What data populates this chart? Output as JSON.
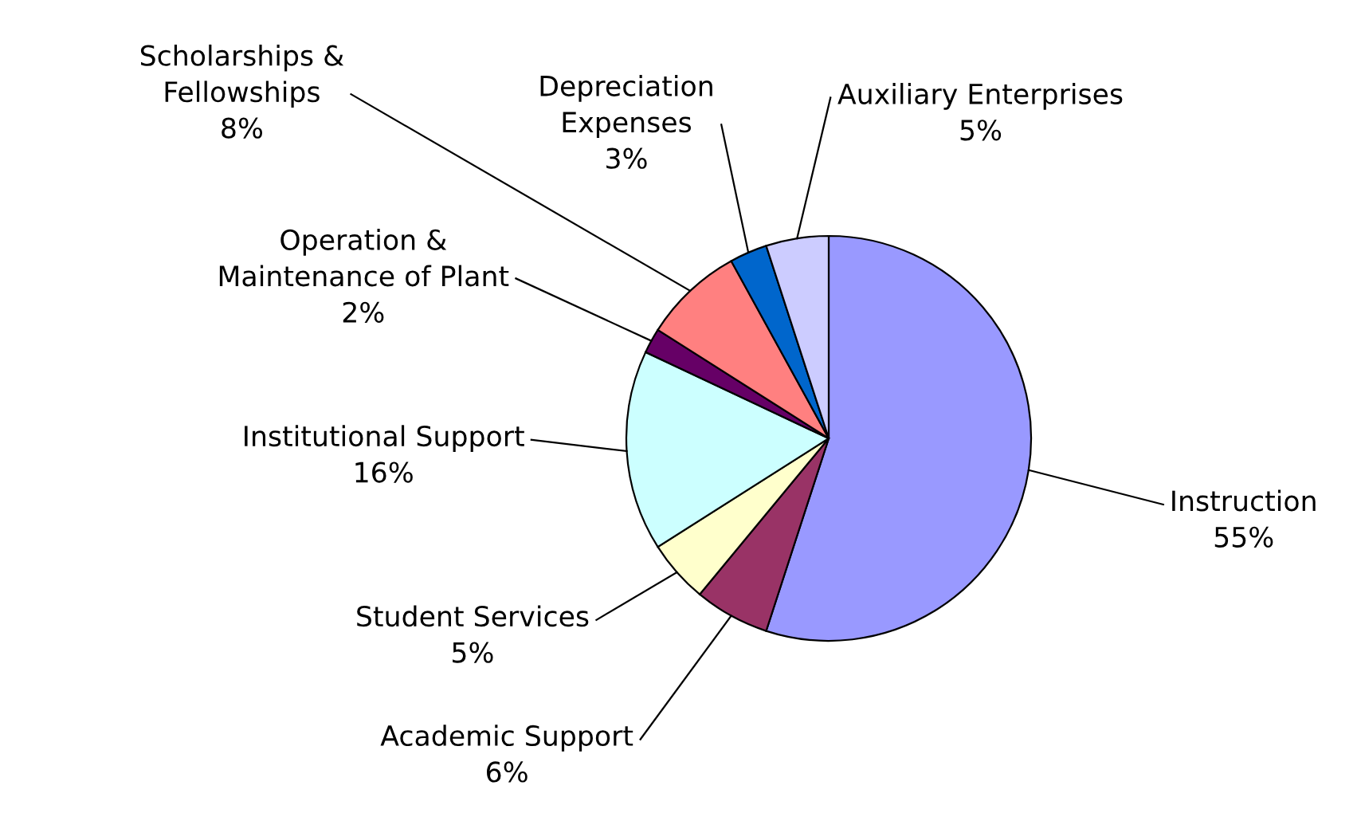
{
  "chart_data": {
    "type": "pie",
    "categories": [
      "Instruction",
      "Academic Support",
      "Student Services",
      "Institutional Support",
      "Operation & Maintenance of Plant",
      "Scholarships & Fellowships",
      "Depreciation Expenses",
      "Auxiliary Enterprises"
    ],
    "value_labels": [
      "55%",
      "6%",
      "5%",
      "16%",
      "2%",
      "8%",
      "3%",
      "5%"
    ],
    "values": [
      55,
      6,
      5,
      16,
      2,
      8,
      3,
      5
    ],
    "colors": [
      "#9999ff",
      "#993366",
      "#ffffcc",
      "#ccffff",
      "#660066",
      "#ff8080",
      "#0066cc",
      "#ccccff"
    ],
    "legend": false
  }
}
